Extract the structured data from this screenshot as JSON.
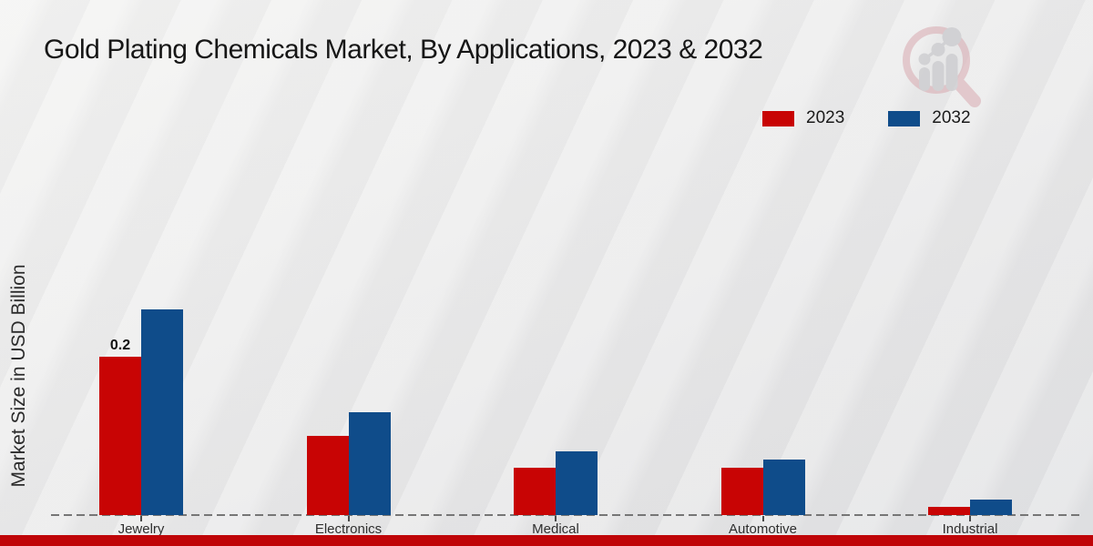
{
  "header": {
    "title": "Gold Plating Chemicals Market, By Applications, 2023 & 2032"
  },
  "axes": {
    "y_label": "Market Size in USD Billion"
  },
  "chart_data": {
    "type": "bar",
    "title": "Gold Plating Chemicals Market, By Applications, 2023 & 2032",
    "categories": [
      "Jewelry",
      "Electronics",
      "Medical",
      "Automotive",
      "Industrial"
    ],
    "series": [
      {
        "name": "2023",
        "color": "#c80404",
        "values": [
          0.2,
          0.1,
          0.06,
          0.06,
          0.01
        ]
      },
      {
        "name": "2032",
        "color": "#0f4c8a",
        "values": [
          0.26,
          0.13,
          0.08,
          0.07,
          0.02
        ]
      }
    ],
    "xlabel": "",
    "ylabel": "Market Size in USD Billion",
    "ylim": [
      0,
      0.3
    ],
    "grid": false,
    "y_axis_ticks_visible": false,
    "legend_position": "top-right",
    "baseline_style": "dashed",
    "annotations": [
      {
        "category": "Jewelry",
        "series": "2023",
        "text": "0.2"
      }
    ]
  },
  "colors": {
    "series_2023": "#c80404",
    "series_2032": "#0f4c8a",
    "footer_strip": "#bf0508",
    "baseline": "#767676",
    "background_top": "#f3f3f2",
    "background_bottom": "#e1e2e4"
  },
  "footer": {}
}
